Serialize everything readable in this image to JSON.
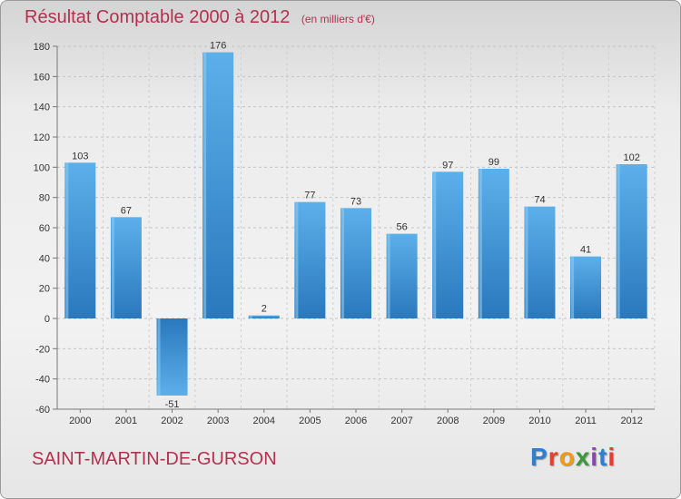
{
  "header": {
    "title": "Résultat Comptable 2000 à 2012",
    "subtitle": "(en milliers d'€)"
  },
  "footer": {
    "commune": "SAINT-MARTIN-DE-GURSON",
    "brand": "Proxiti",
    "brand_letters": [
      "P",
      "r",
      "o",
      "x",
      "i",
      "t",
      "i"
    ]
  },
  "colors": {
    "title": "#b5304f",
    "bar_light": "#5aaee8",
    "bar_dark": "#2a78bd",
    "axis": "#888888",
    "grid": "#c8c8c8",
    "label": "#333333"
  },
  "chart_data": {
    "type": "bar",
    "title": "Résultat Comptable 2000 à 2012",
    "subtitle": "(en milliers d'€)",
    "xlabel": "",
    "ylabel": "",
    "categories": [
      "2000",
      "2001",
      "2002",
      "2003",
      "2004",
      "2005",
      "2006",
      "2007",
      "2008",
      "2009",
      "2010",
      "2011",
      "2012"
    ],
    "values": [
      103,
      67,
      -51,
      176,
      2,
      77,
      73,
      56,
      97,
      99,
      74,
      41,
      102
    ],
    "ylim": [
      -60,
      180
    ],
    "yticks": [
      180,
      160,
      140,
      120,
      100,
      80,
      60,
      40,
      20,
      0,
      -20,
      -40,
      -60
    ],
    "grid": true,
    "legend": "none"
  }
}
